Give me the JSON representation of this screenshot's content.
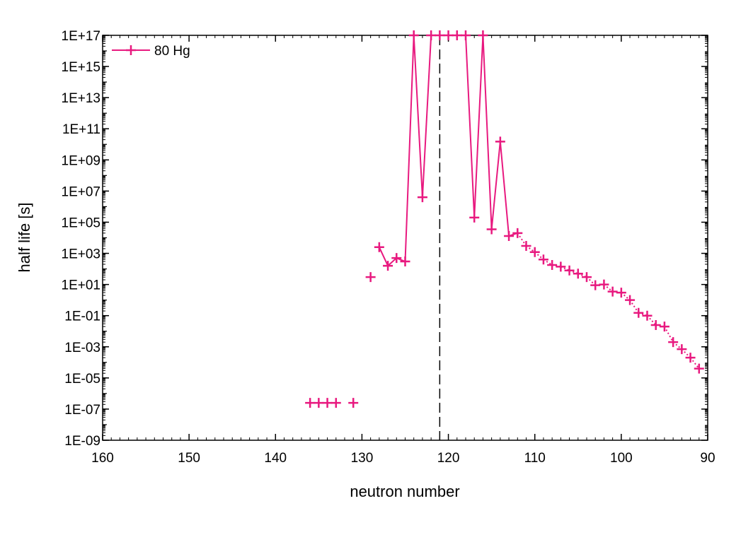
{
  "chart_data": {
    "type": "line",
    "xlabel": "neutron number",
    "ylabel": "half life [s]",
    "x_axis": {
      "range": [
        160,
        90
      ],
      "reversed": true,
      "ticks": [
        160,
        150,
        140,
        130,
        120,
        110,
        100,
        90
      ],
      "tick_labels": [
        "160",
        "150",
        "140",
        "130",
        "120",
        "110",
        "100",
        "90"
      ]
    },
    "y_axis": {
      "scale": "log",
      "range": [
        1e-09,
        1e+17
      ],
      "ticks": [
        1e-09,
        1e-07,
        1e-05,
        0.001,
        0.1,
        10.0,
        1000.0,
        100000.0,
        10000000.0,
        1000000000.0,
        100000000000.0,
        10000000000000.0,
        1000000000000000.0,
        1e+17
      ],
      "tick_labels": [
        "1E-09",
        "1E-07",
        "1E-05",
        "1E-03",
        "1E-01",
        "1E+01",
        "1E+03",
        "1E+05",
        "1E+07",
        "1E+09",
        "1E+11",
        "1E+13",
        "1E+15",
        "1E+17"
      ]
    },
    "grid": false,
    "legend_position": "top-left",
    "reference_line": {
      "x": 121,
      "style": "dashed",
      "color": "#000000"
    },
    "series": [
      {
        "name": "80 Hg",
        "color": "#e8197f",
        "marker": "plus",
        "x": [
          136,
          135,
          134,
          133,
          131,
          129,
          128,
          127,
          126,
          125,
          124,
          123,
          122,
          121,
          120,
          119,
          118,
          117,
          116,
          115,
          114,
          113,
          112,
          111,
          110,
          109,
          108,
          107,
          106,
          105,
          104,
          103,
          102,
          101,
          100,
          99,
          98,
          97,
          96,
          95,
          94,
          93,
          92,
          91
        ],
        "y": [
          2.5e-07,
          2.5e-07,
          2.5e-07,
          2.5e-07,
          2.5e-07,
          30,
          2500,
          160,
          500,
          300,
          1e+17,
          4000000.0,
          1e+17,
          1e+17,
          1e+17,
          1e+17,
          1e+17,
          200000.0,
          1e+17,
          35000.0,
          15000000000.0,
          13000.0,
          20000.0,
          3000.0,
          1200.0,
          400,
          180,
          140,
          80,
          50,
          30,
          9,
          10,
          3.5,
          3,
          1,
          0.15,
          0.1,
          0.025,
          0.02,
          0.002,
          0.0007,
          0.0002,
          4e-05
        ],
        "gaps_after_x": [
          133,
          131,
          129
        ]
      }
    ]
  }
}
